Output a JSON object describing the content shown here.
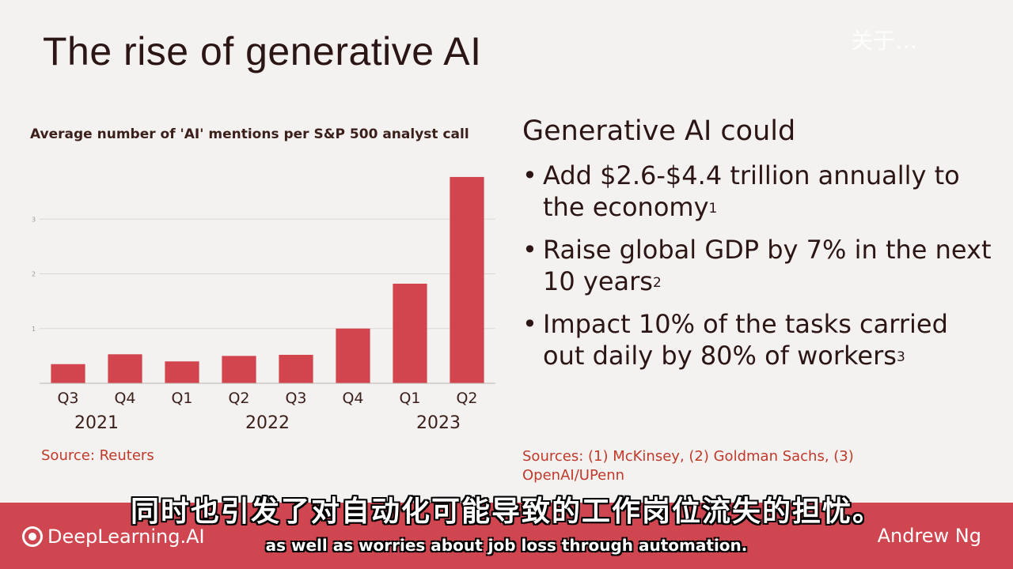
{
  "slide": {
    "title": "The rise of generative AI",
    "watermark": "关于…",
    "source_left": "Source: Reuters",
    "right_heading": "Generative AI could",
    "bullets": [
      {
        "text": "Add $2.6-$4.4 trillion annually to the economy",
        "sup": "1"
      },
      {
        "text": "Raise global GDP by 7% in the next 10 years",
        "sup": "2"
      },
      {
        "text": "Impact 10% of the tasks carried out daily by 80% of workers",
        "sup": "3"
      }
    ],
    "source_right": "Sources: (1) McKinsey, (2) Goldman Sachs, (3) OpenAI/UPenn"
  },
  "footer": {
    "brand": "DeepLearning.AI",
    "presenter": "Andrew Ng"
  },
  "subtitles": {
    "chinese": "同时也引发了对自动化可能导致的工作岗位流失的担忧。",
    "english": "as well as worries about job loss through automation."
  },
  "chart_data": {
    "type": "bar",
    "title": "Average number of 'AI' mentions per S&P 500 analyst call",
    "categories": [
      "Q3",
      "Q4",
      "Q1",
      "Q2",
      "Q3",
      "Q4",
      "Q1",
      "Q2"
    ],
    "year_groups": [
      {
        "label": "2021",
        "from": 0,
        "to": 1
      },
      {
        "label": "2022",
        "from": 2,
        "to": 5
      },
      {
        "label": "2023",
        "from": 6,
        "to": 7
      }
    ],
    "values": [
      0.35,
      0.53,
      0.4,
      0.5,
      0.52,
      1.0,
      1.82,
      3.77
    ],
    "yticks": [
      1,
      2,
      3
    ],
    "ylim": [
      0,
      4
    ],
    "bar_color": "#d2454f",
    "grid": true
  }
}
